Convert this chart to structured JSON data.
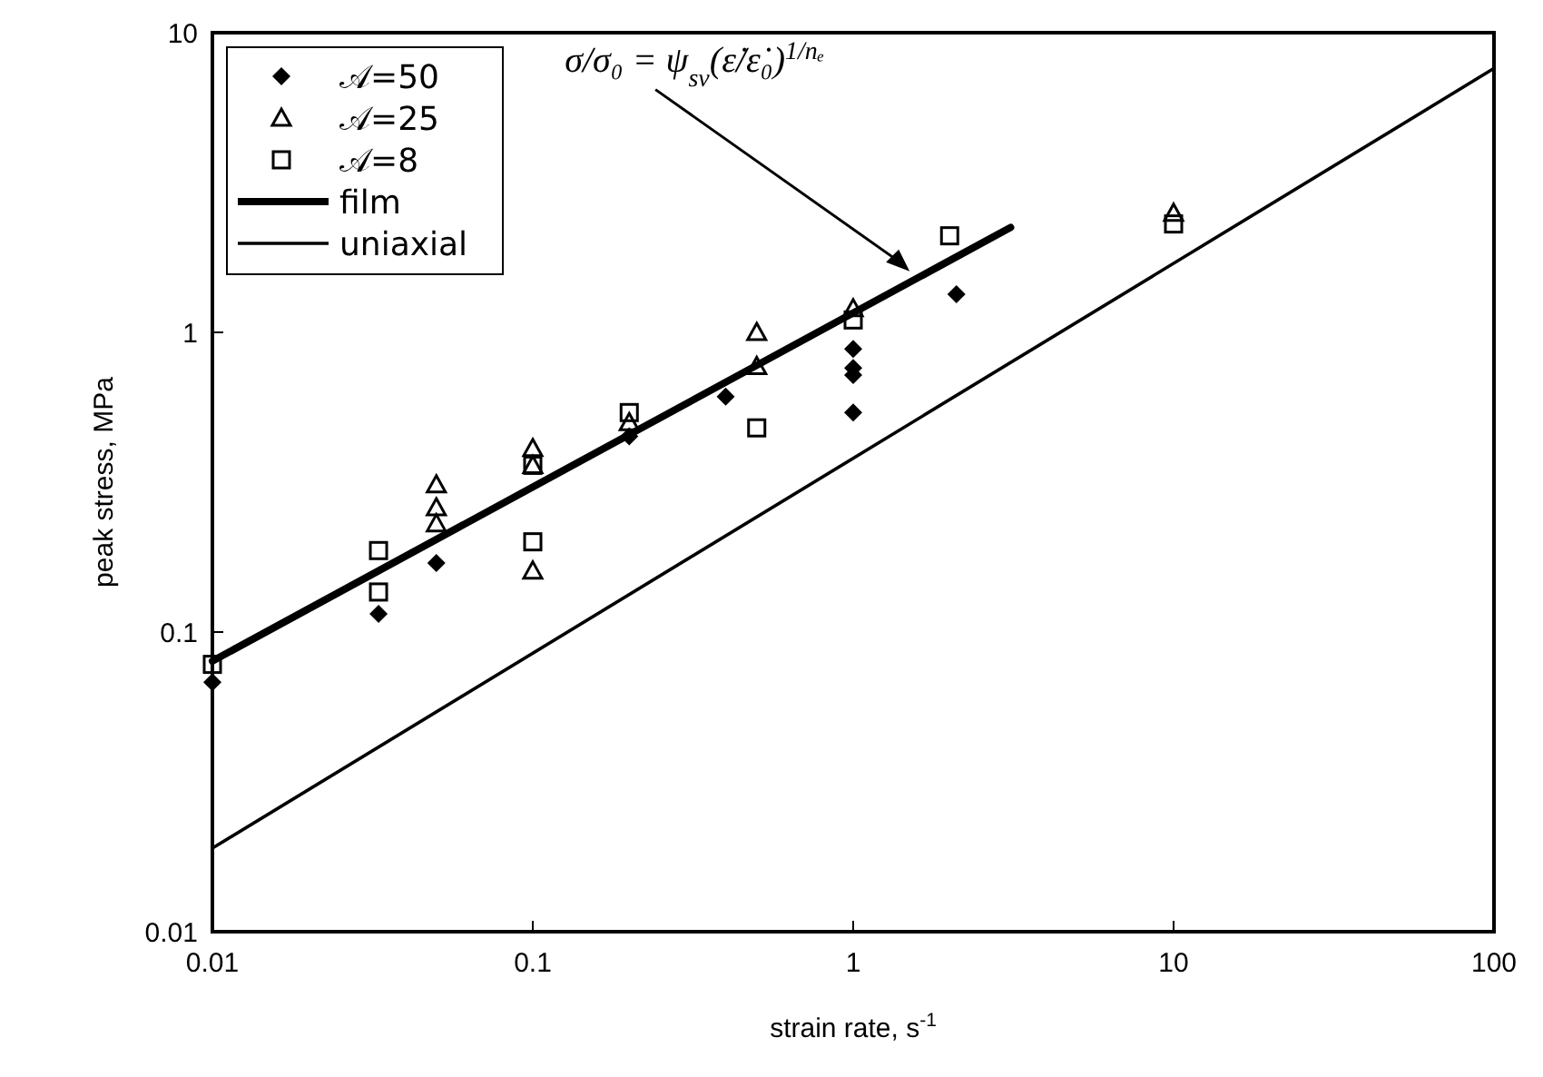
{
  "chart_data": {
    "type": "scatter",
    "xlabel": "strain rate, s$^{-1}$",
    "ylabel": "peak stress, MPa",
    "log": "xy",
    "xlim": [
      0.01,
      100
    ],
    "ylim": [
      0.01,
      10
    ],
    "xticks": [
      0.01,
      0.1,
      1,
      10,
      100
    ],
    "yticks": [
      0.01,
      0.1,
      1,
      10
    ],
    "grid": false,
    "legend": "top left",
    "series": [
      {
        "name": "𝒜=50",
        "marker": "diamond",
        "color": "#000000",
        "x": [
          0.01,
          0.033,
          0.05,
          0.2,
          0.4,
          1,
          1,
          1,
          1,
          2.1
        ],
        "values": [
          0.068,
          0.115,
          0.17,
          0.45,
          0.61,
          0.88,
          0.76,
          0.72,
          0.54,
          1.34
        ]
      },
      {
        "name": "𝒜=25",
        "marker": "triangle",
        "color": "#000000",
        "x": [
          0.05,
          0.05,
          0.05,
          0.1,
          0.1,
          0.1,
          0.2,
          0.5,
          0.5,
          1,
          10
        ],
        "values": [
          0.31,
          0.26,
          0.23,
          0.41,
          0.36,
          0.16,
          0.5,
          1.0,
          0.77,
          1.2,
          2.5
        ]
      },
      {
        "name": "𝒜=8",
        "marker": "square",
        "color": "#000000",
        "x": [
          0.01,
          0.033,
          0.033,
          0.1,
          0.1,
          0.2,
          0.5,
          1,
          2,
          10
        ],
        "values": [
          0.078,
          0.187,
          0.136,
          0.36,
          0.2,
          0.54,
          0.48,
          1.1,
          2.1,
          2.3
        ]
      },
      {
        "name": "film",
        "type": "line",
        "marker": "none",
        "color": "#000000",
        "x": [
          0.01,
          3.1
        ],
        "values": [
          0.08,
          2.24
        ]
      },
      {
        "name": "uniaxial",
        "type": "line",
        "marker": "none",
        "color": "#000000",
        "x": [
          0.01,
          100
        ],
        "values": [
          0.019,
          7.6
        ]
      }
    ],
    "annotations": [
      {
        "text": "σ/σ₀ = ψ$_{sv}$(ε̇/ε̇₀)$^{1/nₑ}$",
        "x": 1.5,
        "y": 1.6
      }
    ]
  }
}
